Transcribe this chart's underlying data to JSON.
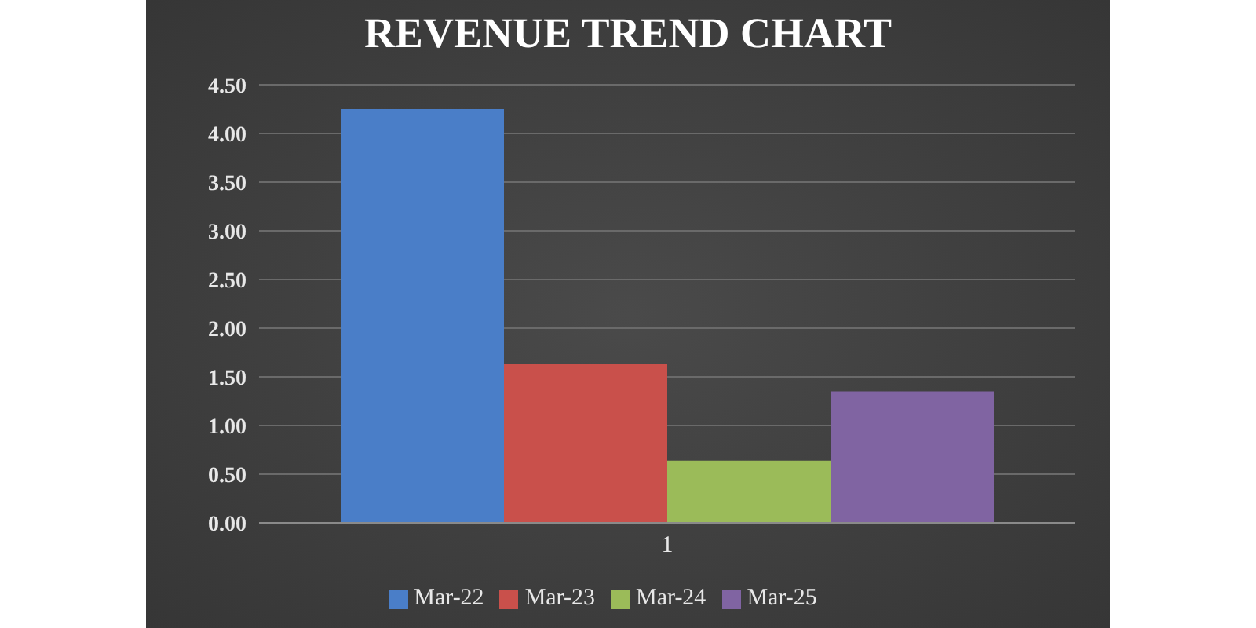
{
  "chart_data": {
    "type": "bar",
    "title": "REVENUE TREND CHART",
    "categories": [
      "1"
    ],
    "series": [
      {
        "name": "Mar-22",
        "color": "#4a7ec8",
        "values": [
          4.25
        ]
      },
      {
        "name": "Mar-23",
        "color": "#c9504b",
        "values": [
          1.63
        ]
      },
      {
        "name": "Mar-24",
        "color": "#9bbb59",
        "values": [
          0.64
        ]
      },
      {
        "name": "Mar-25",
        "color": "#8064a2",
        "values": [
          1.35
        ]
      }
    ],
    "ylim": [
      0,
      4.5
    ],
    "yticks": [
      {
        "value": 0,
        "label": "0.00"
      },
      {
        "value": 0.5,
        "label": "0.50"
      },
      {
        "value": 1,
        "label": "1.00"
      },
      {
        "value": 1.5,
        "label": "1.50"
      },
      {
        "value": 2,
        "label": "2.00"
      },
      {
        "value": 2.5,
        "label": "2.50"
      },
      {
        "value": 3,
        "label": "3.00"
      },
      {
        "value": 3.5,
        "label": "3.50"
      },
      {
        "value": 4,
        "label": "4.00"
      },
      {
        "value": 4.5,
        "label": "4.50"
      }
    ],
    "grid": "y",
    "legend": "bottom"
  }
}
